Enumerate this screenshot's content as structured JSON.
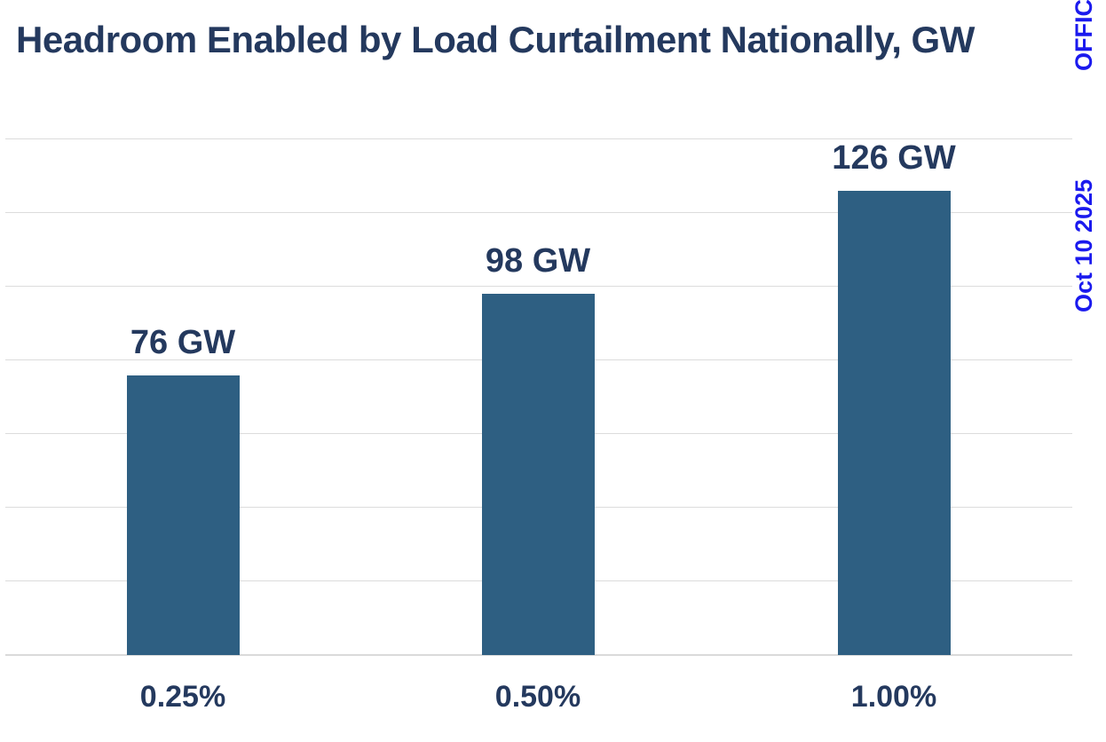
{
  "page": {
    "background": "#ffffff"
  },
  "chart_data": {
    "type": "bar",
    "title": "Headroom Enabled by Load Curtailment Nationally, GW",
    "categories": [
      "0.25%",
      "0.50%",
      "1.00%"
    ],
    "values": [
      76,
      98,
      126
    ],
    "value_labels": [
      "76 GW",
      "98 GW",
      "126 GW"
    ],
    "xlabel": "",
    "ylabel": "",
    "ylim": [
      0,
      140
    ],
    "gridline_step": 20,
    "grid": true,
    "y_tick_labels_visible": false,
    "legend": false,
    "bar_color": "#2e5f82",
    "label_color": "#24395e",
    "gridline_color": "#dcdcdc"
  },
  "watermark": {
    "top_text": "OFFIC",
    "date_text": "Oct 10 2025",
    "color": "#1b1aee"
  }
}
